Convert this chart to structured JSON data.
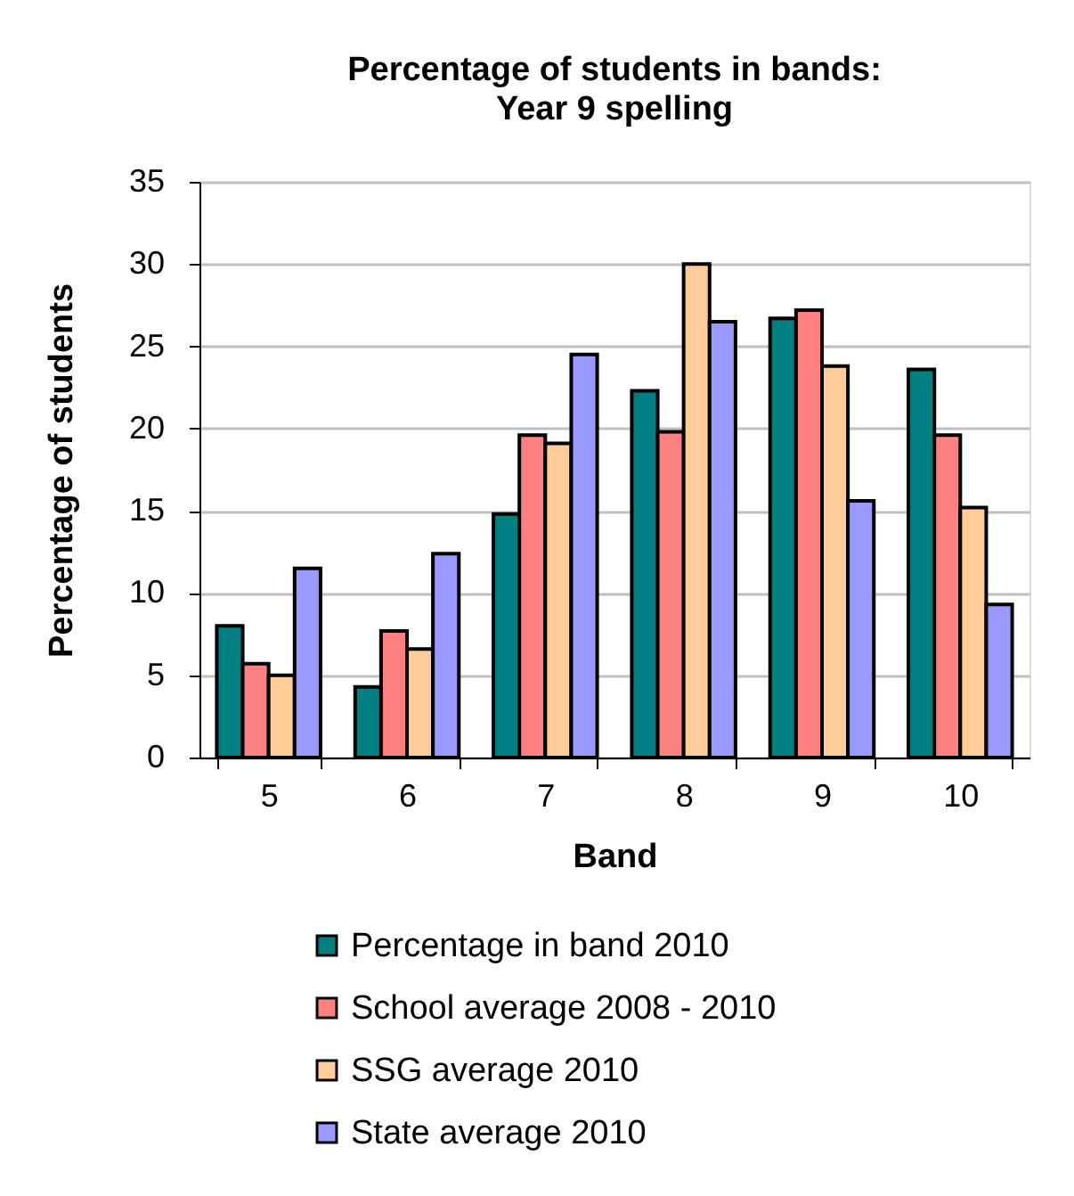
{
  "chart_data": {
    "type": "bar",
    "title": "Percentage of students in bands:\nYear 9 spelling",
    "xlabel": "Band",
    "ylabel": "Percentage of students",
    "categories": [
      "5",
      "6",
      "7",
      "8",
      "9",
      "10"
    ],
    "series": [
      {
        "name": "Percentage in band 2010",
        "color": "#008080",
        "values": [
          8.0,
          4.3,
          14.8,
          22.3,
          26.7,
          23.6
        ]
      },
      {
        "name": "School average 2008 - 2010",
        "color": "#ff8080",
        "values": [
          5.7,
          7.7,
          19.6,
          19.8,
          27.2,
          19.6
        ]
      },
      {
        "name": "SSG average 2010",
        "color": "#ffcc99",
        "values": [
          5.0,
          6.6,
          19.1,
          30.0,
          23.8,
          15.2
        ]
      },
      {
        "name": "State average 2010",
        "color": "#9999ff",
        "values": [
          11.5,
          12.4,
          24.5,
          26.5,
          15.6,
          9.3
        ]
      }
    ],
    "ylim": [
      0,
      35
    ],
    "yticks": [
      0,
      5,
      10,
      15,
      20,
      25,
      30,
      35
    ],
    "grid": "y",
    "legend": "bottom"
  }
}
